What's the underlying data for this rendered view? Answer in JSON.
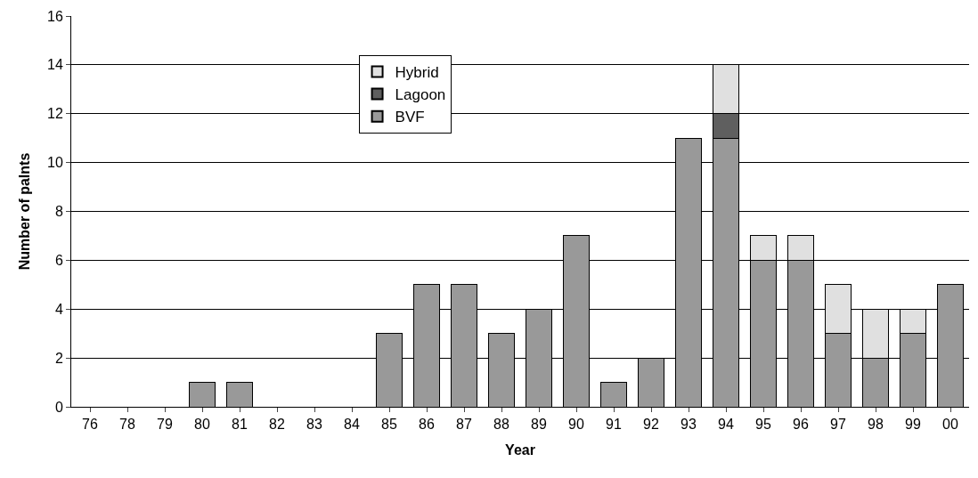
{
  "chart_data": {
    "type": "bar",
    "stacked": true,
    "xlabel": "Year",
    "ylabel": "Number of palnts",
    "categories": [
      "76",
      "78",
      "79",
      "80",
      "81",
      "82",
      "83",
      "84",
      "85",
      "86",
      "87",
      "88",
      "89",
      "90",
      "91",
      "92",
      "93",
      "94",
      "95",
      "96",
      "97",
      "98",
      "99",
      "00"
    ],
    "series": [
      {
        "name": "BVF",
        "color": "#999999",
        "values": [
          null,
          null,
          null,
          1,
          1,
          null,
          null,
          null,
          3,
          5,
          5,
          3,
          4,
          7,
          1,
          2,
          11,
          11,
          6,
          6,
          3,
          2,
          3,
          5
        ]
      },
      {
        "name": "Lagoon",
        "color": "#5f5f5f",
        "values": [
          null,
          null,
          null,
          null,
          null,
          null,
          null,
          null,
          null,
          null,
          null,
          null,
          null,
          null,
          null,
          null,
          null,
          1,
          null,
          null,
          null,
          null,
          null,
          null
        ]
      },
      {
        "name": "Hybrid",
        "color": "#e0e0e0",
        "values": [
          null,
          null,
          null,
          null,
          null,
          null,
          null,
          null,
          null,
          null,
          null,
          null,
          null,
          null,
          null,
          null,
          null,
          2,
          1,
          1,
          2,
          2,
          1,
          null
        ]
      }
    ],
    "ylim": [
      0,
      16
    ],
    "yticks": [
      0,
      2,
      4,
      6,
      8,
      10,
      12,
      14,
      16
    ],
    "grid": "y",
    "legend": "top"
  }
}
